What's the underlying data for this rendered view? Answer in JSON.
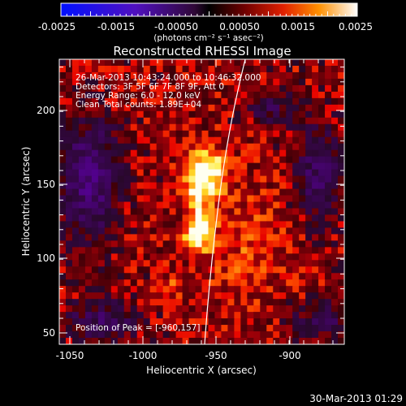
{
  "colorbar": {
    "tick_labels": [
      "-0.0025",
      "-0.0015",
      "-0.00050",
      "0.00050",
      "0.0015",
      "0.0025"
    ],
    "unit_label": "(photons cm⁻² s⁻¹ asec⁻²)",
    "range": [
      -0.0025,
      0.0025
    ]
  },
  "image": {
    "title": "Reconstructed RHESSI Image",
    "annotations": [
      "26-Mar-2013 10:43:24.000 to 10:46:32.000",
      "Detectors: 3F 5F 6F 7F 8F 9F, Att 0",
      "Energy Range: 6.0 - 12.0 keV",
      "Clean     Total counts: 1.89E+04"
    ],
    "peak_label": "Position of Peak = [-960,157]",
    "xlabel": "Heliocentric X (arcsec)",
    "ylabel": "Heliocentric Y (arcsec)",
    "x_ticks": [
      "-1050",
      "-1000",
      "-950",
      "-900"
    ],
    "y_ticks": [
      "50",
      "100",
      "150",
      "200"
    ],
    "xlim": [
      -1070,
      -870
    ],
    "ylim": [
      43,
      233
    ]
  },
  "footer": {
    "timestamp": "30-Mar-2013 01:29"
  },
  "colors": {
    "background": "#000000",
    "text": "#ffffff",
    "limb_line": "#ffffff"
  }
}
